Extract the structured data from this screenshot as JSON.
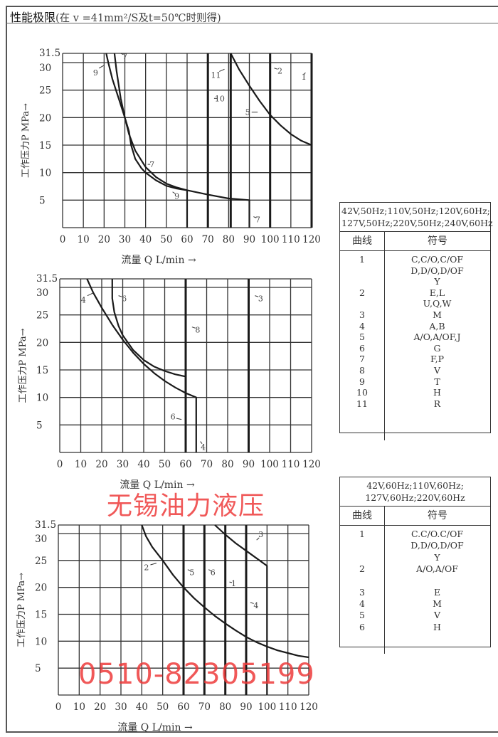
{
  "header": {
    "title_bold": "性能极限",
    "title_rest": "(在 v =41mm²/S及t=50℃时则得)"
  },
  "chart_data": [
    {
      "type": "line",
      "xlabel": "流量 Q L/min →",
      "ylabel": "工作压力P MPa→",
      "xlim": [
        0,
        120
      ],
      "ylim": [
        0,
        31.5
      ],
      "xticks": [
        "0",
        "10",
        "20",
        "30",
        "40",
        "50",
        "60",
        "70",
        "80",
        "90",
        "100",
        "110",
        "120"
      ],
      "yticks": [
        "5",
        "10",
        "15",
        "20",
        "25",
        "30",
        "31.5"
      ],
      "grid": true,
      "series": [
        {
          "name": "1",
          "points": [
            [
              120,
              31.5
            ],
            [
              120,
              0
            ]
          ]
        },
        {
          "name": "2",
          "points": [
            [
              100,
              31.5
            ],
            [
              100,
              0
            ]
          ]
        },
        {
          "name": "5",
          "points": [
            [
              81,
              31.5
            ],
            [
              85,
              28.8
            ],
            [
              90,
              25.8
            ],
            [
              95,
              23
            ],
            [
              100,
              20.5
            ],
            [
              105,
              18.6
            ],
            [
              110,
              17
            ],
            [
              115,
              15.8
            ],
            [
              120,
              15
            ]
          ]
        },
        {
          "name": "7",
          "points": [
            [
              25,
              31.5
            ],
            [
              26,
              28.5
            ],
            [
              28,
              23.5
            ],
            [
              30,
              20
            ],
            [
              32,
              17
            ],
            [
              35,
              14
            ],
            [
              40,
              11
            ],
            [
              45,
              9.2
            ],
            [
              50,
              8
            ],
            [
              55,
              7.3
            ],
            [
              60,
              6.8
            ],
            [
              70,
              6
            ],
            [
              80,
              5.3
            ],
            [
              90,
              5
            ],
            [
              90,
              0
            ]
          ]
        },
        {
          "name": "9",
          "points": [
            [
              21,
              31.5
            ],
            [
              22,
              30
            ],
            [
              24,
              27
            ],
            [
              27,
              23.5
            ],
            [
              30,
              20
            ],
            [
              32,
              17.5
            ],
            [
              33,
              15
            ],
            [
              35,
              12.5
            ],
            [
              38,
              10.8
            ],
            [
              40,
              10
            ],
            [
              45,
              8.6
            ],
            [
              50,
              7.6
            ],
            [
              55,
              7.1
            ],
            [
              60,
              6.8
            ],
            [
              60,
              0
            ]
          ]
        },
        {
          "name": "10",
          "points": [
            [
              70,
              31.5
            ],
            [
              70,
              0
            ]
          ]
        },
        {
          "name": "11",
          "points": [
            [
              81,
              31.5
            ],
            [
              81,
              0
            ]
          ]
        }
      ]
    },
    {
      "type": "line",
      "xlabel": "流量 Q L/min →",
      "ylabel": "工作压力P MPa→",
      "xlim": [
        0,
        120
      ],
      "ylim": [
        0,
        31.5
      ],
      "xticks": [
        "0",
        "10",
        "20",
        "30",
        "40",
        "50",
        "60",
        "70",
        "80",
        "90",
        "100",
        "110",
        "120"
      ],
      "yticks": [
        "5",
        "10",
        "15",
        "20",
        "25",
        "30",
        "31.5"
      ],
      "grid": true,
      "series": [
        {
          "name": "3",
          "points": [
            [
              90,
              31.5
            ],
            [
              90,
              0
            ]
          ]
        },
        {
          "name": "4",
          "points": [
            [
              13,
              31.5
            ],
            [
              16,
              29
            ],
            [
              20,
              26.3
            ],
            [
              25,
              23.2
            ],
            [
              30,
              20.5
            ],
            [
              35,
              18.1
            ],
            [
              40,
              16.1
            ],
            [
              45,
              14.4
            ],
            [
              50,
              13
            ],
            [
              55,
              11.8
            ],
            [
              60,
              10.8
            ],
            [
              65,
              10
            ],
            [
              65,
              0
            ]
          ]
        },
        {
          "name": "6",
          "points": [
            [
              25,
              31.5
            ],
            [
              25,
              28
            ],
            [
              26,
              25.5
            ],
            [
              28,
              23
            ],
            [
              30,
              21.3
            ],
            [
              35,
              18.6
            ],
            [
              40,
              16.8
            ],
            [
              45,
              15.6
            ],
            [
              50,
              14.8
            ],
            [
              55,
              14.2
            ],
            [
              60,
              13.8
            ],
            [
              60,
              0
            ]
          ]
        },
        {
          "name": "8",
          "points": [
            [
              60,
              31.5
            ],
            [
              60,
              0
            ]
          ]
        }
      ]
    },
    {
      "type": "line",
      "xlabel": "流量 Q L/min →",
      "ylabel": "工作压力P MPa→",
      "xlim": [
        0,
        120
      ],
      "ylim": [
        0,
        31.5
      ],
      "xticks": [
        "0",
        "10",
        "20",
        "30",
        "40",
        "50",
        "60",
        "70",
        "80",
        "90",
        "100",
        "110",
        "120"
      ],
      "yticks": [
        "5",
        "10",
        "15",
        "20",
        "25",
        "30",
        "31.5"
      ],
      "grid": true,
      "series": [
        {
          "name": "1",
          "points": [
            [
              80,
              31.5
            ],
            [
              80,
              0
            ]
          ]
        },
        {
          "name": "2",
          "points": [
            [
              40,
              31.5
            ],
            [
              42,
              29.5
            ],
            [
              45,
              27.5
            ],
            [
              50,
              25
            ],
            [
              55,
              22.3
            ],
            [
              60,
              20
            ],
            [
              65,
              18
            ],
            [
              70,
              16.3
            ],
            [
              75,
              14.7
            ],
            [
              80,
              13.3
            ],
            [
              85,
              12
            ],
            [
              90,
              10.8
            ],
            [
              95,
              9.8
            ],
            [
              100,
              9
            ],
            [
              105,
              8.3
            ],
            [
              110,
              7.8
            ],
            [
              115,
              7.3
            ],
            [
              120,
              7
            ]
          ]
        },
        {
          "name": "3",
          "points": [
            [
              75,
              31.5
            ],
            [
              80,
              29.8
            ],
            [
              85,
              28.2
            ],
            [
              90,
              26.8
            ],
            [
              95,
              25.4
            ],
            [
              100,
              24
            ],
            [
              100,
              0
            ]
          ]
        },
        {
          "name": "4",
          "points": [
            [
              90,
              31.5
            ],
            [
              90,
              0
            ]
          ]
        },
        {
          "name": "5",
          "points": [
            [
              60,
              31.5
            ],
            [
              60,
              0
            ]
          ]
        },
        {
          "name": "6",
          "points": [
            [
              70,
              31.5
            ],
            [
              70,
              0
            ]
          ]
        }
      ]
    }
  ],
  "tables": [
    {
      "condition": [
        "42V,50Hz;110V,50Hz;120V,60Hz;",
        "127V,50Hz;220V,50Hz;240V,60Hz"
      ],
      "col_curve": "曲线",
      "col_symbol": "符号",
      "rows": [
        {
          "curve": "1",
          "symbols": [
            "C,C/O,C/OF",
            "D,D/O,D/OF",
            "Y"
          ]
        },
        {
          "curve": "2",
          "symbols": [
            "E,L",
            "U,Q,W"
          ]
        },
        {
          "curve": "3",
          "symbols": [
            "M"
          ]
        },
        {
          "curve": "4",
          "symbols": [
            "A,B"
          ]
        },
        {
          "curve": "5",
          "symbols": [
            "A/O,A/OF,J"
          ]
        },
        {
          "curve": "6",
          "symbols": [
            "G"
          ]
        },
        {
          "curve": "7",
          "symbols": [
            "F,P"
          ]
        },
        {
          "curve": "8",
          "symbols": [
            "V"
          ]
        },
        {
          "curve": "9",
          "symbols": [
            "T"
          ]
        },
        {
          "curve": "10",
          "symbols": [
            "H"
          ]
        },
        {
          "curve": "11",
          "symbols": [
            "R"
          ]
        }
      ]
    },
    {
      "condition": [
        "42V,60Hz;110V,60Hz;",
        "127V,60Hz;220V,60Hz"
      ],
      "col_curve": "曲线",
      "col_symbol": "符号",
      "rows": [
        {
          "curve": "1",
          "symbols": [
            "C.C/O.C/OF",
            "D,D/O,D/OF",
            "Y"
          ]
        },
        {
          "curve": "2",
          "symbols": [
            "A/O,A/OF"
          ]
        },
        {
          "curve": "3",
          "symbols": [
            "E"
          ]
        },
        {
          "curve": "4",
          "symbols": [
            "M"
          ]
        },
        {
          "curve": "5",
          "symbols": [
            "V"
          ]
        },
        {
          "curve": "6",
          "symbols": [
            "H"
          ]
        }
      ]
    }
  ],
  "watermark": {
    "company": "无锡油力液压",
    "phone": "0510-82305199",
    "color": "#ee3b3b"
  }
}
